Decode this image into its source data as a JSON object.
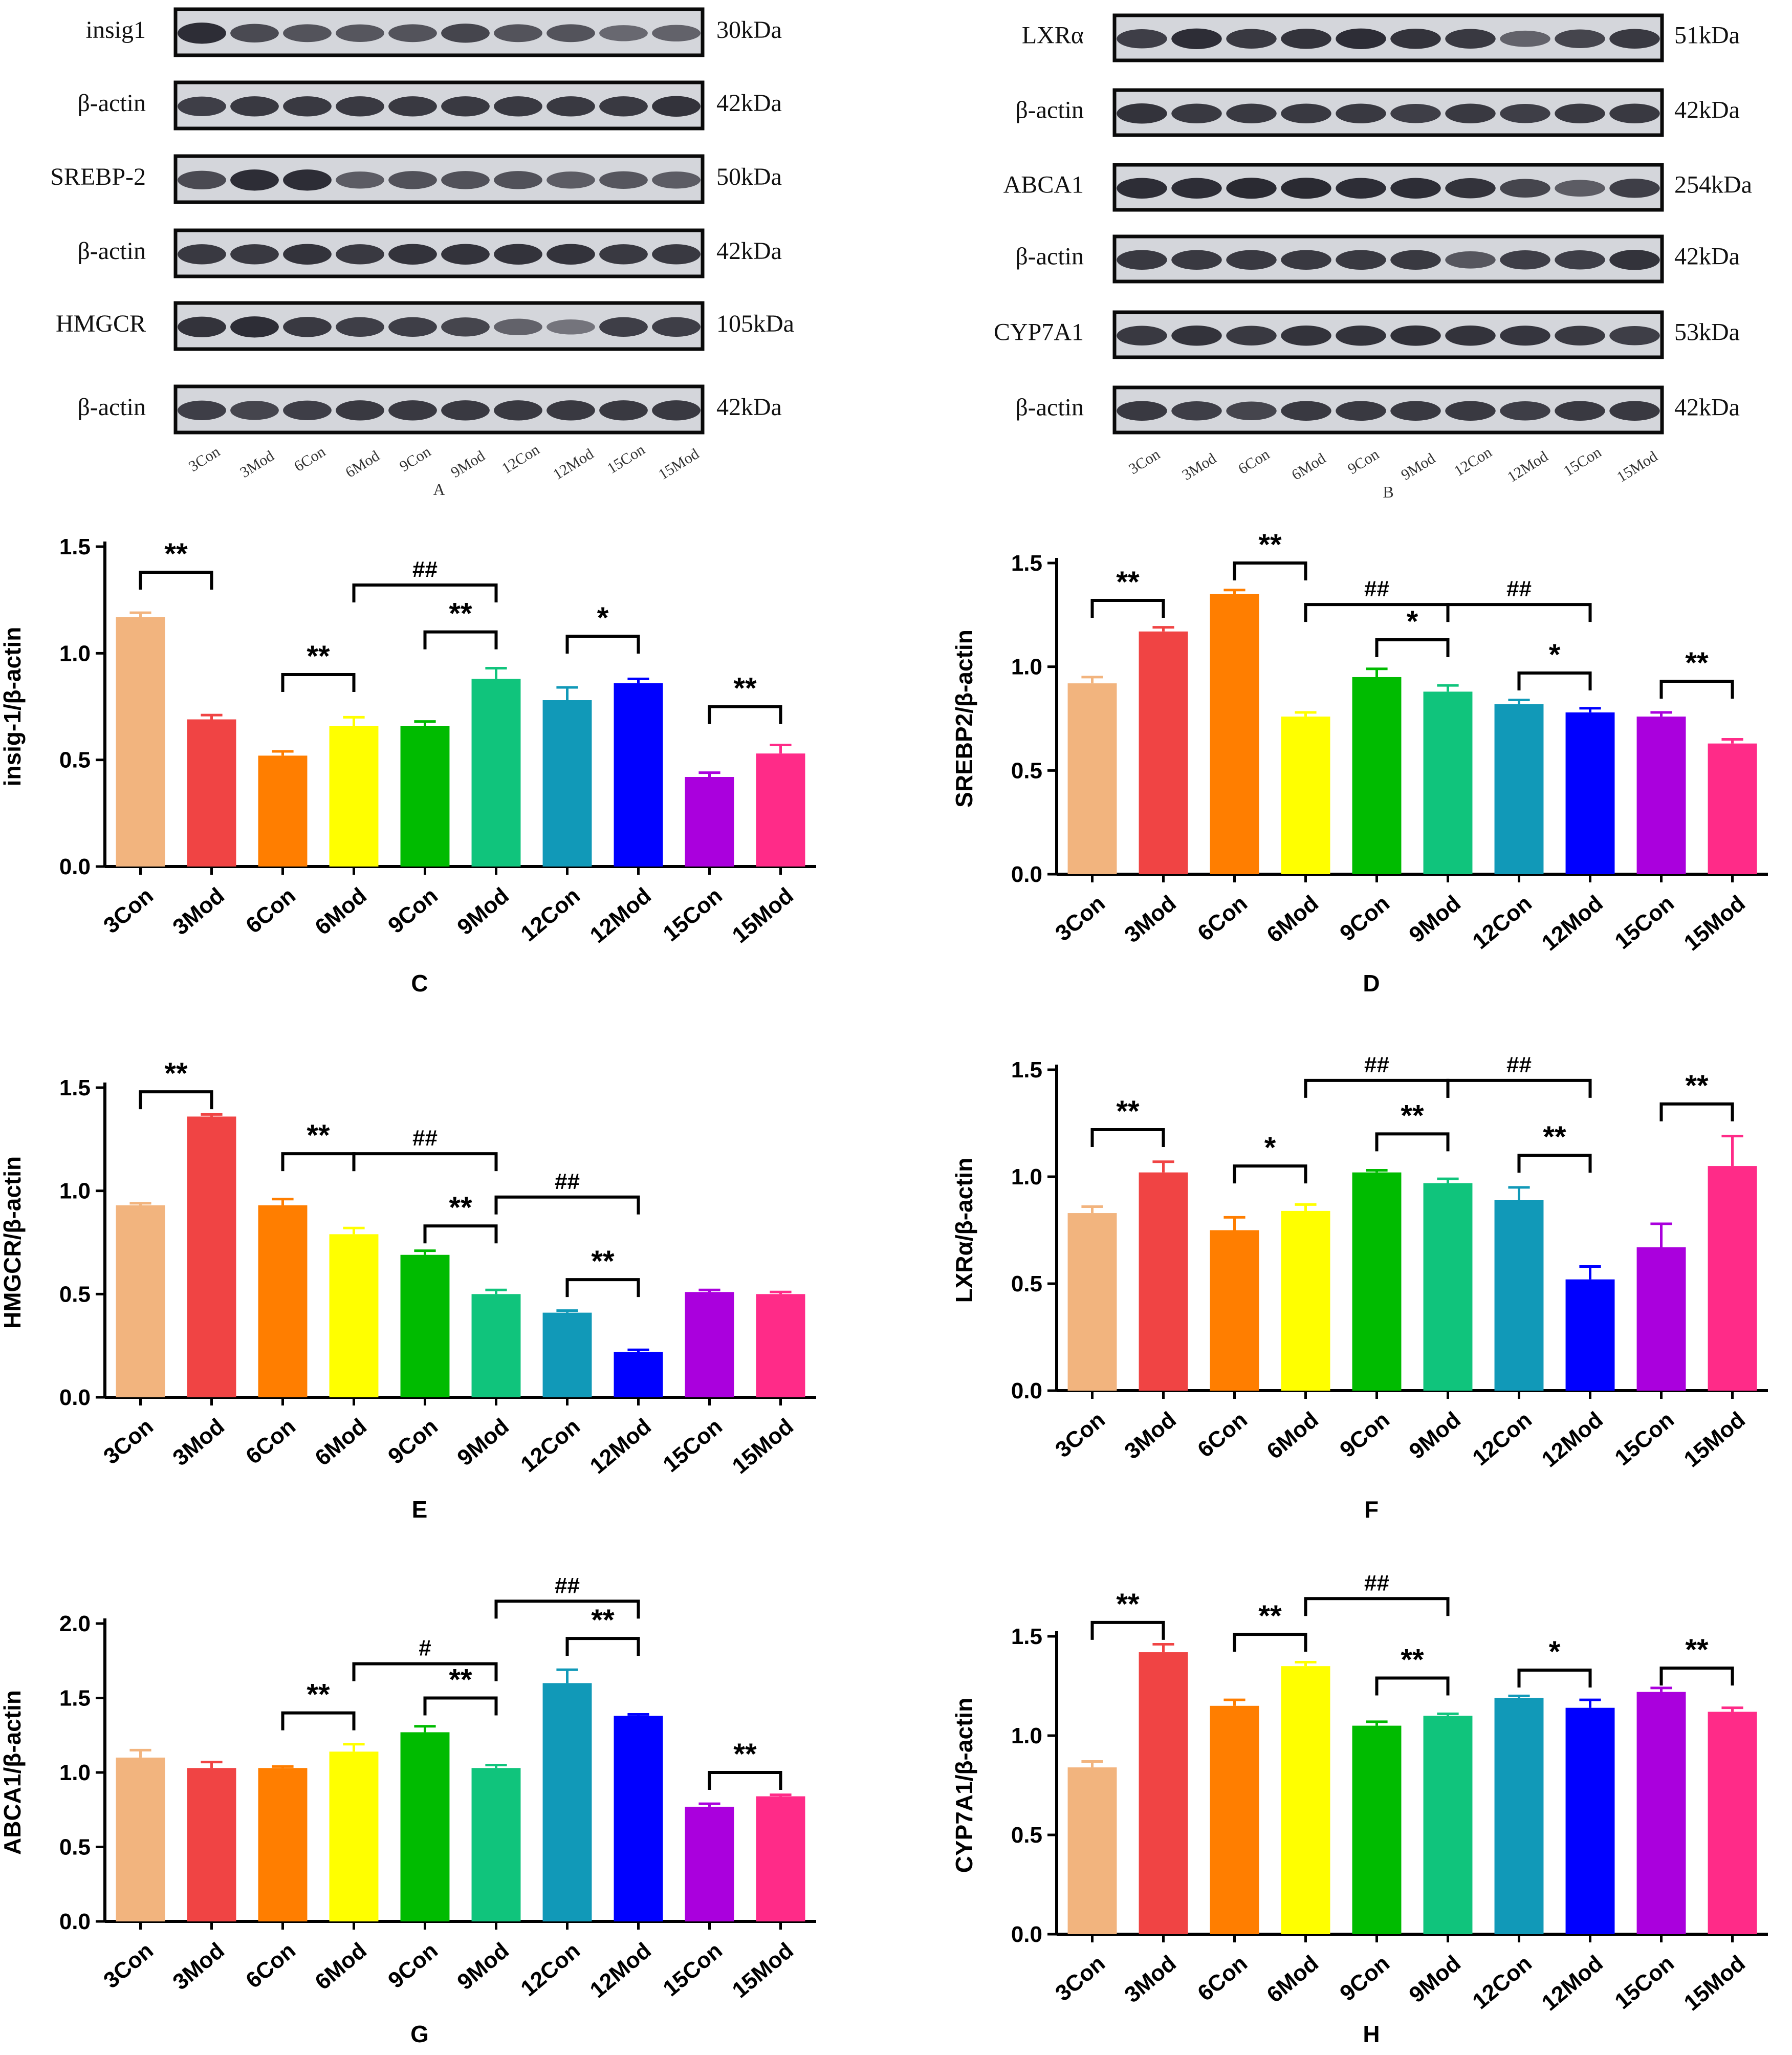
{
  "blots": {
    "lanes": [
      "3Con",
      "3Mod",
      "6Con",
      "6Mod",
      "9Con",
      "9Mod",
      "12Con",
      "12Mod",
      "15Con",
      "15Mod"
    ],
    "panel_a": {
      "letter": "A",
      "rows": [
        {
          "label": "insig1",
          "size": "30kDa",
          "intensity": [
            0.95,
            0.7,
            0.62,
            0.6,
            0.62,
            0.75,
            0.62,
            0.62,
            0.45,
            0.5
          ]
        },
        {
          "label": "β-actin",
          "size": "42kDa",
          "intensity": [
            0.8,
            0.85,
            0.85,
            0.85,
            0.85,
            0.85,
            0.85,
            0.85,
            0.85,
            0.9
          ]
        },
        {
          "label": "SREBP-2",
          "size": "50kDa",
          "intensity": [
            0.7,
            0.95,
            0.95,
            0.55,
            0.65,
            0.65,
            0.65,
            0.55,
            0.6,
            0.55
          ]
        },
        {
          "label": "β-actin",
          "size": "42kDa",
          "intensity": [
            0.85,
            0.85,
            0.9,
            0.85,
            0.9,
            0.9,
            0.9,
            0.9,
            0.85,
            0.85
          ]
        },
        {
          "label": "HMGCR",
          "size": "105kDa",
          "intensity": [
            0.9,
            0.95,
            0.85,
            0.8,
            0.8,
            0.75,
            0.5,
            0.35,
            0.8,
            0.8
          ]
        },
        {
          "label": "β-actin",
          "size": "42kDa",
          "intensity": [
            0.8,
            0.75,
            0.8,
            0.85,
            0.85,
            0.85,
            0.85,
            0.85,
            0.85,
            0.85
          ]
        }
      ]
    },
    "panel_b": {
      "letter": "B",
      "rows": [
        {
          "label": "LXRα",
          "size": "51kDa",
          "intensity": [
            0.8,
            0.95,
            0.85,
            0.9,
            0.95,
            0.9,
            0.85,
            0.5,
            0.75,
            0.85
          ]
        },
        {
          "label": "β-actin",
          "size": "42kDa",
          "intensity": [
            0.9,
            0.85,
            0.85,
            0.85,
            0.85,
            0.8,
            0.85,
            0.8,
            0.85,
            0.85
          ]
        },
        {
          "label": "ABCA1",
          "size": "254kDa",
          "intensity": [
            0.95,
            0.95,
            0.98,
            0.98,
            0.95,
            0.95,
            0.9,
            0.75,
            0.55,
            0.8
          ]
        },
        {
          "label": "β-actin",
          "size": "42kDa",
          "intensity": [
            0.85,
            0.85,
            0.85,
            0.85,
            0.85,
            0.85,
            0.6,
            0.8,
            0.8,
            0.9
          ]
        },
        {
          "label": "CYP7A1",
          "size": "53kDa",
          "intensity": [
            0.85,
            0.9,
            0.85,
            0.9,
            0.9,
            0.92,
            0.9,
            0.88,
            0.85,
            0.8
          ]
        },
        {
          "label": "β-actin",
          "size": "42kDa",
          "intensity": [
            0.85,
            0.8,
            0.75,
            0.85,
            0.85,
            0.85,
            0.85,
            0.8,
            0.85,
            0.85
          ]
        }
      ]
    }
  },
  "chart_data": [
    {
      "id": "C",
      "type": "bar",
      "ylabel": "insig-1/β-actin",
      "categories": [
        "3Con",
        "3Mod",
        "6Con",
        "6Mod",
        "9Con",
        "9Mod",
        "12Con",
        "12Mod",
        "15Con",
        "15Mod"
      ],
      "values": [
        1.17,
        0.69,
        0.52,
        0.66,
        0.66,
        0.88,
        0.78,
        0.86,
        0.42,
        0.53
      ],
      "errors": [
        0.02,
        0.02,
        0.02,
        0.04,
        0.02,
        0.05,
        0.06,
        0.02,
        0.02,
        0.04
      ],
      "ylim": [
        0,
        1.5
      ],
      "yticks": [
        "0.0",
        "0.5",
        "1.0",
        "1.5"
      ],
      "brackets": [
        {
          "from": 0,
          "to": 1,
          "y": 1.38,
          "label": "**"
        },
        {
          "from": 2,
          "to": 3,
          "y": 0.9,
          "label": "**"
        },
        {
          "from": 3,
          "to": 5,
          "y": 1.32,
          "label": "##"
        },
        {
          "from": 4,
          "to": 5,
          "y": 1.1,
          "label": "**"
        },
        {
          "from": 6,
          "to": 7,
          "y": 1.08,
          "label": "*"
        },
        {
          "from": 8,
          "to": 9,
          "y": 0.75,
          "label": "**"
        }
      ]
    },
    {
      "id": "D",
      "type": "bar",
      "ylabel": "SREBP2/β-actin",
      "categories": [
        "3Con",
        "3Mod",
        "6Con",
        "6Mod",
        "9Con",
        "9Mod",
        "12Con",
        "12Mod",
        "15Con",
        "15Mod"
      ],
      "values": [
        0.92,
        1.17,
        1.35,
        0.76,
        0.95,
        0.88,
        0.82,
        0.78,
        0.76,
        0.63
      ],
      "errors": [
        0.03,
        0.02,
        0.02,
        0.02,
        0.04,
        0.03,
        0.02,
        0.02,
        0.02,
        0.02
      ],
      "ylim": [
        0,
        1.5
      ],
      "yticks": [
        "0.0",
        "0.5",
        "1.0",
        "1.5"
      ],
      "brackets": [
        {
          "from": 0,
          "to": 1,
          "y": 1.32,
          "label": "**"
        },
        {
          "from": 2,
          "to": 3,
          "y": 1.5,
          "label": "**"
        },
        {
          "from": 3,
          "to": 5,
          "y": 1.3,
          "label": "##"
        },
        {
          "from": 5,
          "to": 7,
          "y": 1.3,
          "label": "##"
        },
        {
          "from": 4,
          "to": 5,
          "y": 1.13,
          "label": "*"
        },
        {
          "from": 6,
          "to": 7,
          "y": 0.97,
          "label": "*"
        },
        {
          "from": 8,
          "to": 9,
          "y": 0.93,
          "label": "**"
        }
      ]
    },
    {
      "id": "E",
      "type": "bar",
      "ylabel": "HMGCR/β-actin",
      "categories": [
        "3Con",
        "3Mod",
        "6Con",
        "6Mod",
        "9Con",
        "9Mod",
        "12Con",
        "12Mod",
        "15Con",
        "15Mod"
      ],
      "values": [
        0.93,
        1.36,
        0.93,
        0.79,
        0.69,
        0.5,
        0.41,
        0.22,
        0.51,
        0.5
      ],
      "errors": [
        0.01,
        0.01,
        0.03,
        0.03,
        0.02,
        0.02,
        0.01,
        0.01,
        0.01,
        0.01
      ],
      "ylim": [
        0,
        1.5
      ],
      "yticks": [
        "0.0",
        "0.5",
        "1.0",
        "1.5"
      ],
      "brackets": [
        {
          "from": 0,
          "to": 1,
          "y": 1.48,
          "label": "**"
        },
        {
          "from": 2,
          "to": 3,
          "y": 1.18,
          "label": "**"
        },
        {
          "from": 3,
          "to": 5,
          "y": 1.18,
          "label": "##"
        },
        {
          "from": 4,
          "to": 5,
          "y": 0.83,
          "label": "**"
        },
        {
          "from": 5,
          "to": 7,
          "y": 0.97,
          "label": "##"
        },
        {
          "from": 6,
          "to": 7,
          "y": 0.57,
          "label": "**"
        }
      ]
    },
    {
      "id": "F",
      "type": "bar",
      "ylabel": "LXRα/β-actin",
      "categories": [
        "3Con",
        "3Mod",
        "6Con",
        "6Mod",
        "9Con",
        "9Mod",
        "12Con",
        "12Mod",
        "15Con",
        "15Mod"
      ],
      "values": [
        0.83,
        1.02,
        0.75,
        0.84,
        1.02,
        0.97,
        0.89,
        0.52,
        0.67,
        1.05
      ],
      "errors": [
        0.03,
        0.05,
        0.06,
        0.03,
        0.01,
        0.02,
        0.06,
        0.06,
        0.11,
        0.14
      ],
      "ylim": [
        0,
        1.5
      ],
      "yticks": [
        "0.0",
        "0.5",
        "1.0",
        "1.5"
      ],
      "brackets": [
        {
          "from": 0,
          "to": 1,
          "y": 1.22,
          "label": "**"
        },
        {
          "from": 2,
          "to": 3,
          "y": 1.05,
          "label": "*"
        },
        {
          "from": 3,
          "to": 5,
          "y": 1.45,
          "label": "##"
        },
        {
          "from": 5,
          "to": 7,
          "y": 1.45,
          "label": "##"
        },
        {
          "from": 4,
          "to": 5,
          "y": 1.2,
          "label": "**"
        },
        {
          "from": 6,
          "to": 7,
          "y": 1.1,
          "label": "**"
        },
        {
          "from": 8,
          "to": 9,
          "y": 1.34,
          "label": "**"
        }
      ]
    },
    {
      "id": "G",
      "type": "bar",
      "ylabel": "ABCA1/β-actin",
      "categories": [
        "3Con",
        "3Mod",
        "6Con",
        "6Mod",
        "9Con",
        "9Mod",
        "12Con",
        "12Mod",
        "15Con",
        "15Mod"
      ],
      "values": [
        1.1,
        1.03,
        1.03,
        1.14,
        1.27,
        1.03,
        1.6,
        1.38,
        0.77,
        0.84
      ],
      "errors": [
        0.05,
        0.04,
        0.01,
        0.05,
        0.04,
        0.02,
        0.09,
        0.01,
        0.02,
        0.01
      ],
      "ylim": [
        0,
        2.0
      ],
      "yticks": [
        "0.0",
        "0.5",
        "1.0",
        "1.5",
        "2.0"
      ],
      "brackets": [
        {
          "from": 2,
          "to": 3,
          "y": 1.4,
          "label": "**"
        },
        {
          "from": 3,
          "to": 5,
          "y": 1.73,
          "label": "#"
        },
        {
          "from": 4,
          "to": 5,
          "y": 1.5,
          "label": "**"
        },
        {
          "from": 5,
          "to": 7,
          "y": 2.15,
          "label": "##"
        },
        {
          "from": 6,
          "to": 7,
          "y": 1.9,
          "label": "**"
        },
        {
          "from": 8,
          "to": 9,
          "y": 1.0,
          "label": "**"
        }
      ]
    },
    {
      "id": "H",
      "type": "bar",
      "ylabel": "CYP7A1/β-actin",
      "categories": [
        "3Con",
        "3Mod",
        "6Con",
        "6Mod",
        "9Con",
        "9Mod",
        "12Con",
        "12Mod",
        "15Con",
        "15Mod"
      ],
      "values": [
        0.84,
        1.42,
        1.15,
        1.35,
        1.05,
        1.1,
        1.19,
        1.14,
        1.22,
        1.12
      ],
      "errors": [
        0.03,
        0.04,
        0.03,
        0.02,
        0.02,
        0.01,
        0.01,
        0.04,
        0.02,
        0.02
      ],
      "ylim": [
        0,
        1.5
      ],
      "yticks": [
        "0.0",
        "0.5",
        "1.0",
        "1.5"
      ],
      "brackets": [
        {
          "from": 0,
          "to": 1,
          "y": 1.57,
          "label": "**"
        },
        {
          "from": 2,
          "to": 3,
          "y": 1.51,
          "label": "**"
        },
        {
          "from": 3,
          "to": 5,
          "y": 1.69,
          "label": "##"
        },
        {
          "from": 4,
          "to": 5,
          "y": 1.29,
          "label": "**"
        },
        {
          "from": 6,
          "to": 7,
          "y": 1.33,
          "label": "*"
        },
        {
          "from": 8,
          "to": 9,
          "y": 1.34,
          "label": "**"
        }
      ]
    }
  ],
  "colors": [
    "#f2b47e",
    "#f04444",
    "#ff7e00",
    "#ffff00",
    "#00bb00",
    "#10c47c",
    "#1199b8",
    "#0000ff",
    "#aa00dd",
    "#ff2b88"
  ]
}
